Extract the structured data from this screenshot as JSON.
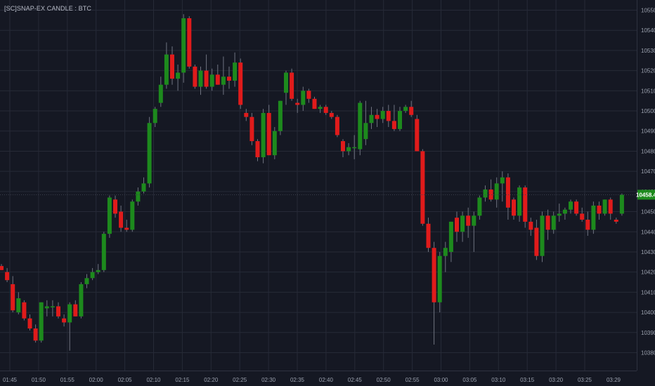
{
  "title": "[SC]SNAP-EX CANDLE : BTC",
  "chart_data": {
    "type": "candlestick",
    "title": "[SC]SNAP-EX CANDLE : BTC",
    "y_ticks": [
      "10550.0",
      "10540.0",
      "10530.0",
      "10520.0",
      "10510.0",
      "10500.0",
      "10490.0",
      "10480.0",
      "10470.0",
      "10460.0",
      "10450.0",
      "10440.0",
      "10430.0",
      "10420.0",
      "10410.0",
      "10400.0",
      "10390.0",
      "10380.0"
    ],
    "x_ticks": [
      "01:45",
      "01:50",
      "01:55",
      "02:00",
      "02:05",
      "02:10",
      "02:15",
      "02:20",
      "02:25",
      "02:30",
      "02:35",
      "02:40",
      "02:45",
      "02:50",
      "02:55",
      "03:00",
      "03:05",
      "03:10",
      "03:15",
      "03:20",
      "03:25",
      "03:29"
    ],
    "ylim": [
      10377.5,
      10552.5
    ],
    "last_price": "10458.4",
    "grid": true,
    "colors": {
      "background": "#151823",
      "up": "#1d8a1d",
      "down": "#e01b1b",
      "grid": "#262a37",
      "axis_text": "#9aa0ad",
      "last_price_badge": "#1d8a1d"
    },
    "candles": [
      {
        "o": 10423,
        "h": 10424,
        "l": 10421,
        "c": 10421
      },
      {
        "o": 10420,
        "h": 10422,
        "l": 10415,
        "c": 10416
      },
      {
        "o": 10414,
        "h": 10418,
        "l": 10400,
        "c": 10401
      },
      {
        "o": 10400,
        "h": 10410,
        "l": 10399,
        "c": 10407
      },
      {
        "o": 10405,
        "h": 10406,
        "l": 10396,
        "c": 10397
      },
      {
        "o": 10397,
        "h": 10399,
        "l": 10391,
        "c": 10392
      },
      {
        "o": 10392,
        "h": 10394,
        "l": 10385,
        "c": 10386
      },
      {
        "o": 10386,
        "h": 10405,
        "l": 10385,
        "c": 10405
      },
      {
        "o": 10402,
        "h": 10406,
        "l": 10398,
        "c": 10403
      },
      {
        "o": 10403,
        "h": 10406,
        "l": 10398,
        "c": 10403
      },
      {
        "o": 10403,
        "h": 10405,
        "l": 10397,
        "c": 10398
      },
      {
        "o": 10397,
        "h": 10399,
        "l": 10393,
        "c": 10395
      },
      {
        "o": 10395,
        "h": 10405,
        "l": 10381,
        "c": 10404
      },
      {
        "o": 10404,
        "h": 10406,
        "l": 10398,
        "c": 10398
      },
      {
        "o": 10398,
        "h": 10415,
        "l": 10397,
        "c": 10414
      },
      {
        "o": 10414,
        "h": 10419,
        "l": 10412,
        "c": 10417
      },
      {
        "o": 10417,
        "h": 10422,
        "l": 10416,
        "c": 10420
      },
      {
        "o": 10420,
        "h": 10424,
        "l": 10419,
        "c": 10421
      },
      {
        "o": 10421,
        "h": 10440,
        "l": 10420,
        "c": 10439
      },
      {
        "o": 10439,
        "h": 10458,
        "l": 10437,
        "c": 10457
      },
      {
        "o": 10456,
        "h": 10458,
        "l": 10447,
        "c": 10449
      },
      {
        "o": 10450,
        "h": 10453,
        "l": 10440,
        "c": 10442
      },
      {
        "o": 10442,
        "h": 10446,
        "l": 10440,
        "c": 10441
      },
      {
        "o": 10441,
        "h": 10456,
        "l": 10440,
        "c": 10455
      },
      {
        "o": 10455,
        "h": 10462,
        "l": 10453,
        "c": 10460
      },
      {
        "o": 10460,
        "h": 10467,
        "l": 10459,
        "c": 10464
      },
      {
        "o": 10464,
        "h": 10497,
        "l": 10462,
        "c": 10494
      },
      {
        "o": 10494,
        "h": 10502,
        "l": 10492,
        "c": 10501
      },
      {
        "o": 10504,
        "h": 10517,
        "l": 10502,
        "c": 10513
      },
      {
        "o": 10513,
        "h": 10534,
        "l": 10511,
        "c": 10528
      },
      {
        "o": 10528,
        "h": 10532,
        "l": 10513,
        "c": 10516
      },
      {
        "o": 10516,
        "h": 10523,
        "l": 10510,
        "c": 10519
      },
      {
        "o": 10519,
        "h": 10548,
        "l": 10514,
        "c": 10546
      },
      {
        "o": 10546,
        "h": 10547,
        "l": 10521,
        "c": 10522
      },
      {
        "o": 10522,
        "h": 10523,
        "l": 10511,
        "c": 10512
      },
      {
        "o": 10512,
        "h": 10522,
        "l": 10508,
        "c": 10520
      },
      {
        "o": 10520,
        "h": 10528,
        "l": 10511,
        "c": 10512
      },
      {
        "o": 10512,
        "h": 10521,
        "l": 10510,
        "c": 10518
      },
      {
        "o": 10518,
        "h": 10523,
        "l": 10513,
        "c": 10513
      },
      {
        "o": 10513,
        "h": 10527,
        "l": 10508,
        "c": 10517
      },
      {
        "o": 10517,
        "h": 10522,
        "l": 10511,
        "c": 10515
      },
      {
        "o": 10515,
        "h": 10529,
        "l": 10512,
        "c": 10524
      },
      {
        "o": 10524,
        "h": 10526,
        "l": 10501,
        "c": 10503
      },
      {
        "o": 10499,
        "h": 10501,
        "l": 10495,
        "c": 10497
      },
      {
        "o": 10497,
        "h": 10499,
        "l": 10483,
        "c": 10485
      },
      {
        "o": 10485,
        "h": 10486,
        "l": 10475,
        "c": 10477
      },
      {
        "o": 10477,
        "h": 10501,
        "l": 10474,
        "c": 10499
      },
      {
        "o": 10499,
        "h": 10503,
        "l": 10478,
        "c": 10478
      },
      {
        "o": 10478,
        "h": 10492,
        "l": 10476,
        "c": 10490
      },
      {
        "o": 10490,
        "h": 10505,
        "l": 10488,
        "c": 10505
      },
      {
        "o": 10509,
        "h": 10520,
        "l": 10503,
        "c": 10519
      },
      {
        "o": 10519,
        "h": 10521,
        "l": 10505,
        "c": 10506
      },
      {
        "o": 10504,
        "h": 10506,
        "l": 10499,
        "c": 10503
      },
      {
        "o": 10503,
        "h": 10512,
        "l": 10500,
        "c": 10510
      },
      {
        "o": 10510,
        "h": 10511,
        "l": 10504,
        "c": 10506
      },
      {
        "o": 10506,
        "h": 10507,
        "l": 10501,
        "c": 10501
      },
      {
        "o": 10501,
        "h": 10503,
        "l": 10499,
        "c": 10502
      },
      {
        "o": 10502,
        "h": 10503,
        "l": 10498,
        "c": 10499
      },
      {
        "o": 10499,
        "h": 10500,
        "l": 10496,
        "c": 10497
      },
      {
        "o": 10497,
        "h": 10498,
        "l": 10487,
        "c": 10488
      },
      {
        "o": 10485,
        "h": 10486,
        "l": 10477,
        "c": 10480
      },
      {
        "o": 10480,
        "h": 10484,
        "l": 10478,
        "c": 10482
      },
      {
        "o": 10482,
        "h": 10488,
        "l": 10476,
        "c": 10482
      },
      {
        "o": 10481,
        "h": 10505,
        "l": 10478,
        "c": 10504
      },
      {
        "o": 10486,
        "h": 10505,
        "l": 10483,
        "c": 10494
      },
      {
        "o": 10494,
        "h": 10502,
        "l": 10491,
        "c": 10498
      },
      {
        "o": 10498,
        "h": 10501,
        "l": 10492,
        "c": 10496
      },
      {
        "o": 10496,
        "h": 10502,
        "l": 10494,
        "c": 10500
      },
      {
        "o": 10500,
        "h": 10503,
        "l": 10492,
        "c": 10495
      },
      {
        "o": 10495,
        "h": 10503,
        "l": 10490,
        "c": 10491
      },
      {
        "o": 10491,
        "h": 10502,
        "l": 10490,
        "c": 10500
      },
      {
        "o": 10500,
        "h": 10503,
        "l": 10499,
        "c": 10502
      },
      {
        "o": 10502,
        "h": 10505,
        "l": 10497,
        "c": 10498
      },
      {
        "o": 10496,
        "h": 10498,
        "l": 10480,
        "c": 10480
      },
      {
        "o": 10480,
        "h": 10481,
        "l": 10443,
        "c": 10444
      },
      {
        "o": 10444,
        "h": 10447,
        "l": 10430,
        "c": 10432
      },
      {
        "o": 10432,
        "h": 10435,
        "l": 10384,
        "c": 10405
      },
      {
        "o": 10405,
        "h": 10430,
        "l": 10400,
        "c": 10428
      },
      {
        "o": 10428,
        "h": 10435,
        "l": 10420,
        "c": 10432
      },
      {
        "o": 10430,
        "h": 10445,
        "l": 10425,
        "c": 10445
      },
      {
        "o": 10447,
        "h": 10450,
        "l": 10435,
        "c": 10440
      },
      {
        "o": 10440,
        "h": 10450,
        "l": 10435,
        "c": 10448
      },
      {
        "o": 10448,
        "h": 10452,
        "l": 10437,
        "c": 10443
      },
      {
        "o": 10443,
        "h": 10450,
        "l": 10430,
        "c": 10448
      },
      {
        "o": 10448,
        "h": 10458,
        "l": 10446,
        "c": 10457
      },
      {
        "o": 10457,
        "h": 10463,
        "l": 10455,
        "c": 10461
      },
      {
        "o": 10461,
        "h": 10466,
        "l": 10455,
        "c": 10456
      },
      {
        "o": 10456,
        "h": 10467,
        "l": 10452,
        "c": 10464
      },
      {
        "o": 10464,
        "h": 10470,
        "l": 10455,
        "c": 10467
      },
      {
        "o": 10467,
        "h": 10469,
        "l": 10446,
        "c": 10452
      },
      {
        "o": 10456,
        "h": 10457,
        "l": 10446,
        "c": 10448
      },
      {
        "o": 10448,
        "h": 10463,
        "l": 10445,
        "c": 10462
      },
      {
        "o": 10462,
        "h": 10463,
        "l": 10442,
        "c": 10445
      },
      {
        "o": 10445,
        "h": 10447,
        "l": 10438,
        "c": 10441
      },
      {
        "o": 10442,
        "h": 10446,
        "l": 10426,
        "c": 10428
      },
      {
        "o": 10428,
        "h": 10450,
        "l": 10425,
        "c": 10448
      },
      {
        "o": 10448,
        "h": 10451,
        "l": 10436,
        "c": 10441
      },
      {
        "o": 10441,
        "h": 10450,
        "l": 10439,
        "c": 10448
      },
      {
        "o": 10448,
        "h": 10454,
        "l": 10445,
        "c": 10449
      },
      {
        "o": 10449,
        "h": 10452,
        "l": 10446,
        "c": 10451
      },
      {
        "o": 10451,
        "h": 10456,
        "l": 10449,
        "c": 10455
      },
      {
        "o": 10455,
        "h": 10456,
        "l": 10448,
        "c": 10449
      },
      {
        "o": 10449,
        "h": 10452,
        "l": 10445,
        "c": 10446
      },
      {
        "o": 10446,
        "h": 10450,
        "l": 10438,
        "c": 10441
      },
      {
        "o": 10441,
        "h": 10455,
        "l": 10439,
        "c": 10453
      },
      {
        "o": 10453,
        "h": 10455,
        "l": 10446,
        "c": 10449
      },
      {
        "o": 10449,
        "h": 10456,
        "l": 10448,
        "c": 10456
      },
      {
        "o": 10456,
        "h": 10457,
        "l": 10446,
        "c": 10449
      },
      {
        "o": 10446,
        "h": 10447,
        "l": 10444,
        "c": 10445
      },
      {
        "o": 10449,
        "h": 10459,
        "l": 10448,
        "c": 10458.4
      }
    ]
  }
}
